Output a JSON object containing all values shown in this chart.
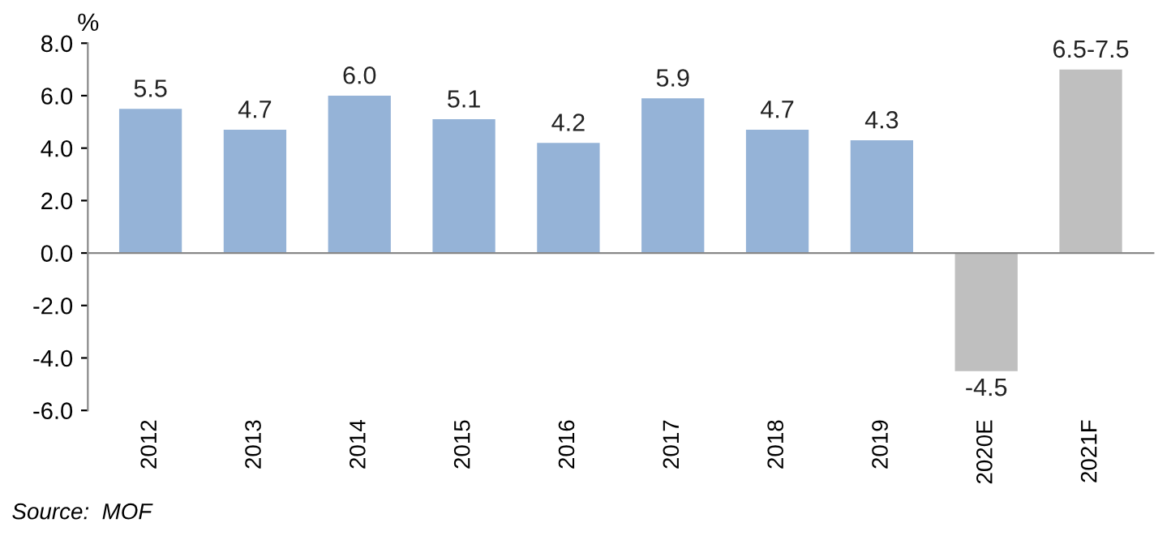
{
  "chart_data": {
    "type": "bar",
    "ylabel": "%",
    "categories": [
      "2012",
      "2013",
      "2014",
      "2015",
      "2016",
      "2017",
      "2018",
      "2019",
      "2020E",
      "2021F"
    ],
    "values": [
      5.5,
      4.7,
      6.0,
      5.1,
      4.2,
      5.9,
      4.7,
      4.3,
      -4.5,
      7.0
    ],
    "value_labels": [
      "5.5",
      "4.7",
      "6.0",
      "5.1",
      "4.2",
      "5.9",
      "4.7",
      "4.3",
      "-4.5",
      "6.5-7.5"
    ],
    "colors": [
      "#95b3d7",
      "#95b3d7",
      "#95b3d7",
      "#95b3d7",
      "#95b3d7",
      "#95b3d7",
      "#95b3d7",
      "#95b3d7",
      "#bfbfbf",
      "#bfbfbf"
    ],
    "ylim": [
      -6,
      8
    ],
    "yticks": [
      {
        "value": -6,
        "label": "-6.0"
      },
      {
        "value": -4,
        "label": "-4.0"
      },
      {
        "value": -2,
        "label": "-2.0"
      },
      {
        "value": 0,
        "label": "0.0"
      },
      {
        "value": 2,
        "label": "2.0"
      },
      {
        "value": 4,
        "label": "4.0"
      },
      {
        "value": 6,
        "label": "6.0"
      },
      {
        "value": 8,
        "label": "8.0"
      }
    ],
    "legend": false,
    "annotations": [
      "Source:  MOF"
    ]
  }
}
